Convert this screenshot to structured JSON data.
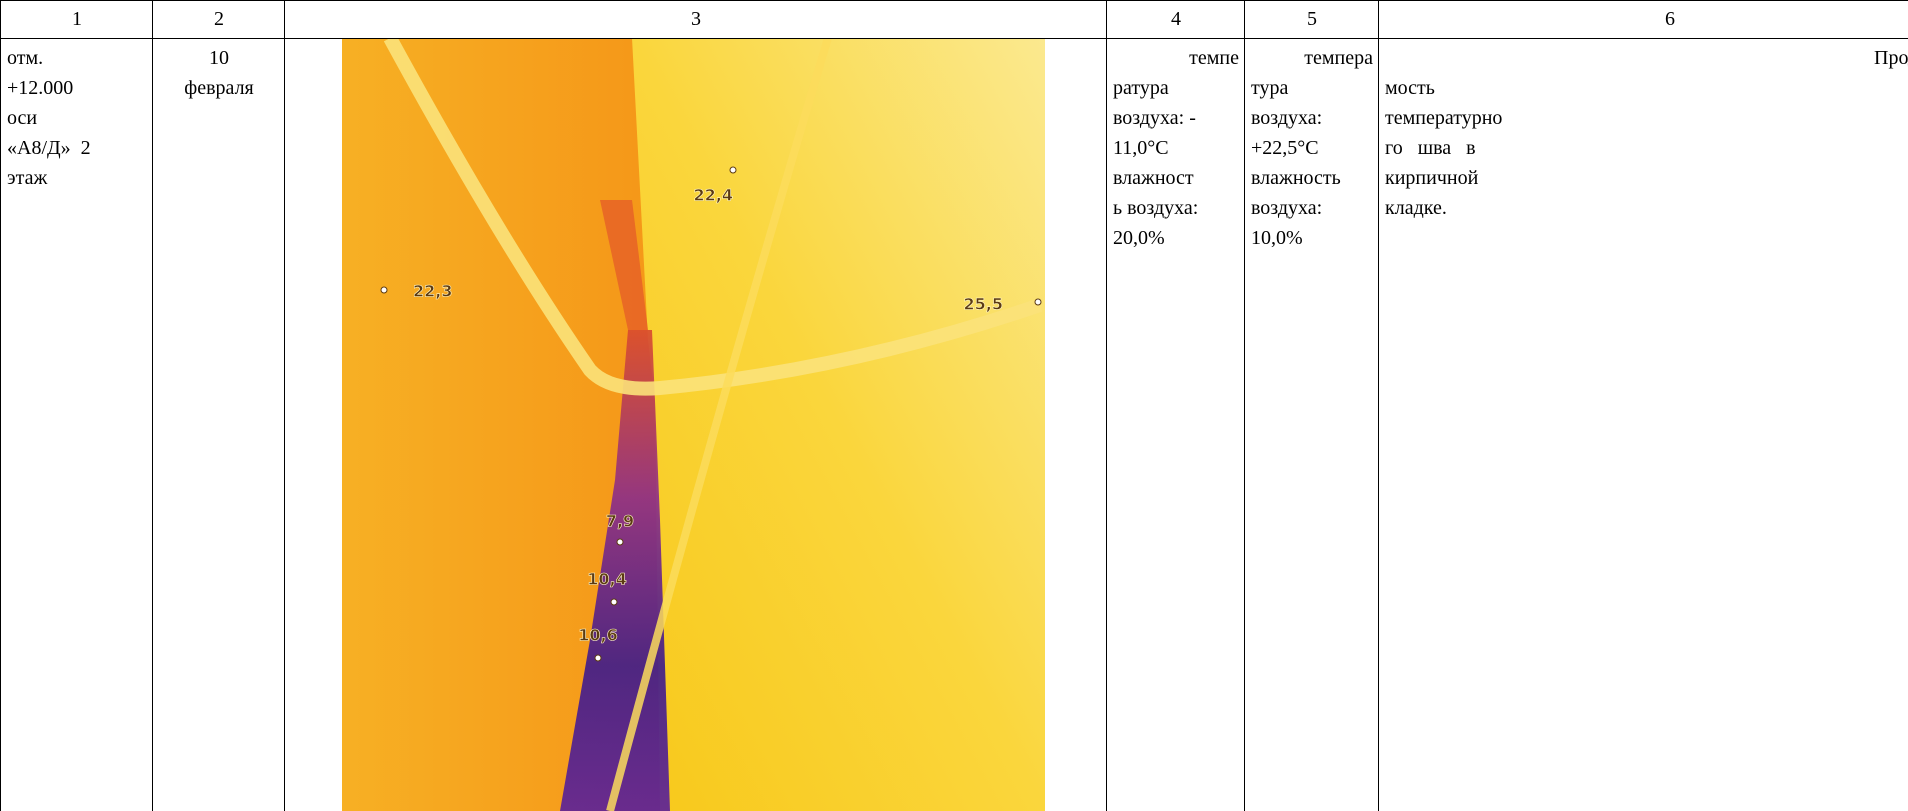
{
  "table": {
    "header": [
      "1",
      "2",
      "3",
      "4",
      "5",
      "6"
    ],
    "rows": [
      {
        "location": [
          "отм.",
          "+12.000",
          "оси",
          "«А8/Д»  2",
          "этаж"
        ],
        "date": [
          "10",
          "февраля"
        ],
        "thermogram": {
          "labels": [
            "22,4",
            "22,3",
            "25,5",
            "7,9",
            "10,4",
            "10,6"
          ]
        },
        "outside": [
          "темпе",
          "ратура",
          "воздуха: -",
          "11,0°C",
          "влажност",
          "ь воздуха:",
          "20,0%"
        ],
        "inside": [
          "темпера",
          "тура",
          "воздуха:",
          "+22,5°C",
          "влажность",
          "воздуха:",
          "10,0%"
        ],
        "defect": [
          "Продувае",
          "мость",
          "температурно",
          "го   шва   в",
          "кирпичной",
          "кладке."
        ]
      }
    ]
  }
}
